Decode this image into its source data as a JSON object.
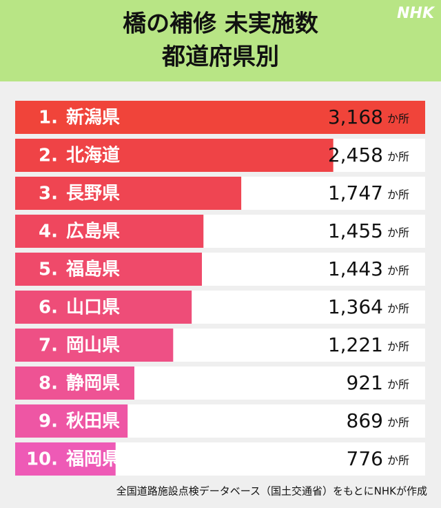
{
  "chart_data": {
    "type": "bar",
    "orientation": "horizontal",
    "title": [
      "橋の補修 未実施数",
      "都道府県別"
    ],
    "logo": "NHK",
    "ranks": [
      "1.",
      "2.",
      "3.",
      "4.",
      "5.",
      "6.",
      "7.",
      "8.",
      "9.",
      "10."
    ],
    "categories": [
      "新潟県",
      "北海道",
      "長野県",
      "広島県",
      "福島県",
      "山口県",
      "岡山県",
      "静岡県",
      "秋田県",
      "福岡県"
    ],
    "values": [
      3168,
      2458,
      1747,
      1455,
      1443,
      1364,
      1221,
      921,
      869,
      776
    ],
    "value_labels": [
      "3,168",
      "2,458",
      "1,747",
      "1,455",
      "1,443",
      "1,364",
      "1,221",
      "921",
      "869",
      "776"
    ],
    "unit": "か所",
    "colors": [
      "#f0443a",
      "#ef4346",
      "#ef4552",
      "#ef475e",
      "#ef4a6a",
      "#ee4d78",
      "#ee5085",
      "#ee5394",
      "#ee56a4",
      "#ee5ab6"
    ],
    "xlim": [
      0,
      3168
    ],
    "source": "全国道路施設点検データベース（国土交通省）をもとにNHKが作成"
  }
}
